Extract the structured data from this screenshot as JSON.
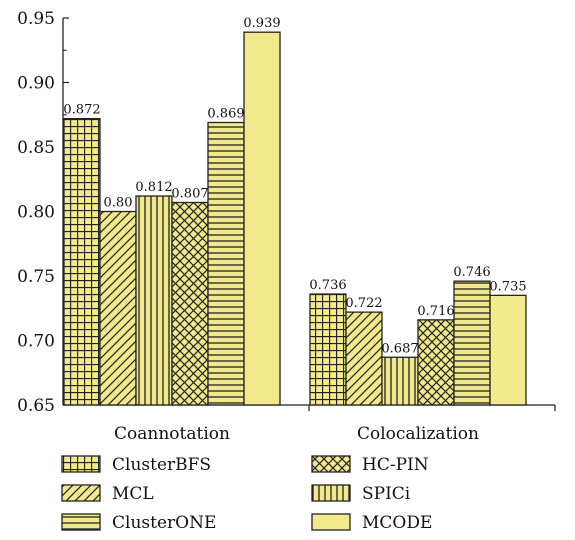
{
  "chart_data": {
    "type": "bar",
    "title": "",
    "xlabel": "",
    "ylabel": "",
    "categories": [
      "Coannotation",
      "Colocalization"
    ],
    "ylim": [
      0.65,
      0.95
    ],
    "yticks": [
      "0.65",
      "0.70",
      "0.75",
      "0.80",
      "0.85",
      "0.90",
      "0.95"
    ],
    "bar_fill_color": "#f2e98c",
    "legend_position": "bottom",
    "series": [
      {
        "name": "ClusterBFS",
        "pattern": "grid",
        "values": [
          0.872,
          0.736
        ],
        "labels": [
          "0.872",
          "0.736"
        ]
      },
      {
        "name": "MCL",
        "pattern": "diagonal",
        "values": [
          0.8,
          0.722
        ],
        "labels": [
          "0.80",
          "0.722"
        ]
      },
      {
        "name": "SPICi",
        "pattern": "vertical",
        "values": [
          0.812,
          0.687
        ],
        "labels": [
          "0.812",
          "0.687"
        ]
      },
      {
        "name": "HC-PIN",
        "pattern": "crosshatch",
        "values": [
          0.807,
          0.716
        ],
        "labels": [
          "0.807",
          "0.716"
        ]
      },
      {
        "name": "ClusterONE",
        "pattern": "horizontal",
        "values": [
          0.869,
          0.746
        ],
        "labels": [
          "0.869",
          "0.746"
        ]
      },
      {
        "name": "MCODE",
        "pattern": "solid",
        "values": [
          0.939,
          0.735
        ],
        "labels": [
          "0.939",
          "0.735"
        ]
      }
    ],
    "legend_order": [
      "ClusterBFS",
      "HC-PIN",
      "MCL",
      "SPICi",
      "ClusterONE",
      "MCODE"
    ]
  }
}
